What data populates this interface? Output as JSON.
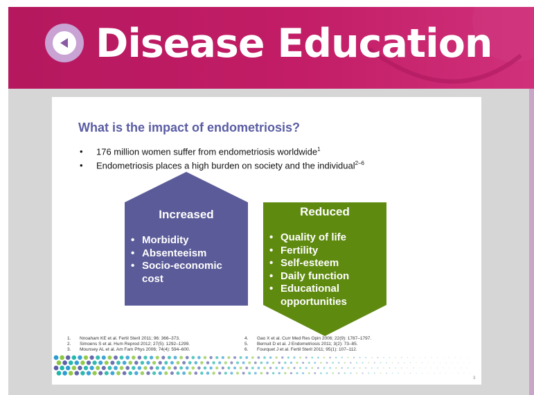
{
  "header": {
    "title": "Disease Education"
  },
  "slide": {
    "title": "What is the impact of endometriosis?",
    "bullets": [
      {
        "text": "176 million women suffer from endometriosis worldwide",
        "sup": "1"
      },
      {
        "text": "Endometriosis places a high burden on society and the individual",
        "sup": "2–6"
      }
    ],
    "increased": {
      "title": "Increased",
      "items": [
        "Morbidity",
        "Absenteeism",
        "Socio-economic cost"
      ]
    },
    "reduced": {
      "title": "Reduced",
      "items": [
        "Quality of life",
        "Fertility",
        "Self-esteem",
        "Daily function",
        "Educational opportunities"
      ]
    },
    "references": [
      {
        "num": "1.",
        "text": "Nnoaham KE et al. Fertil Steril 2011; 96: 366–373."
      },
      {
        "num": "2.",
        "text": "Simoens S et al. Hum Reprod 2012; 27(5): 1292–1299."
      },
      {
        "num": "3.",
        "text": "Mounsey AL et al. Am Fam Phys 2006; 74(4): 594–600."
      },
      {
        "num": "4.",
        "text": "Gao X et al. Curr Med Res Opin 2006; 22(9): 1787–1797."
      },
      {
        "num": "5.",
        "text": "Bernuit D et al. J Endometriosis 2011; 3(2): 73–85."
      },
      {
        "num": "6.",
        "text": "Fourquet J et al. Fertil Steril 2011; 95(1): 107–112."
      }
    ],
    "page_number": "3"
  }
}
